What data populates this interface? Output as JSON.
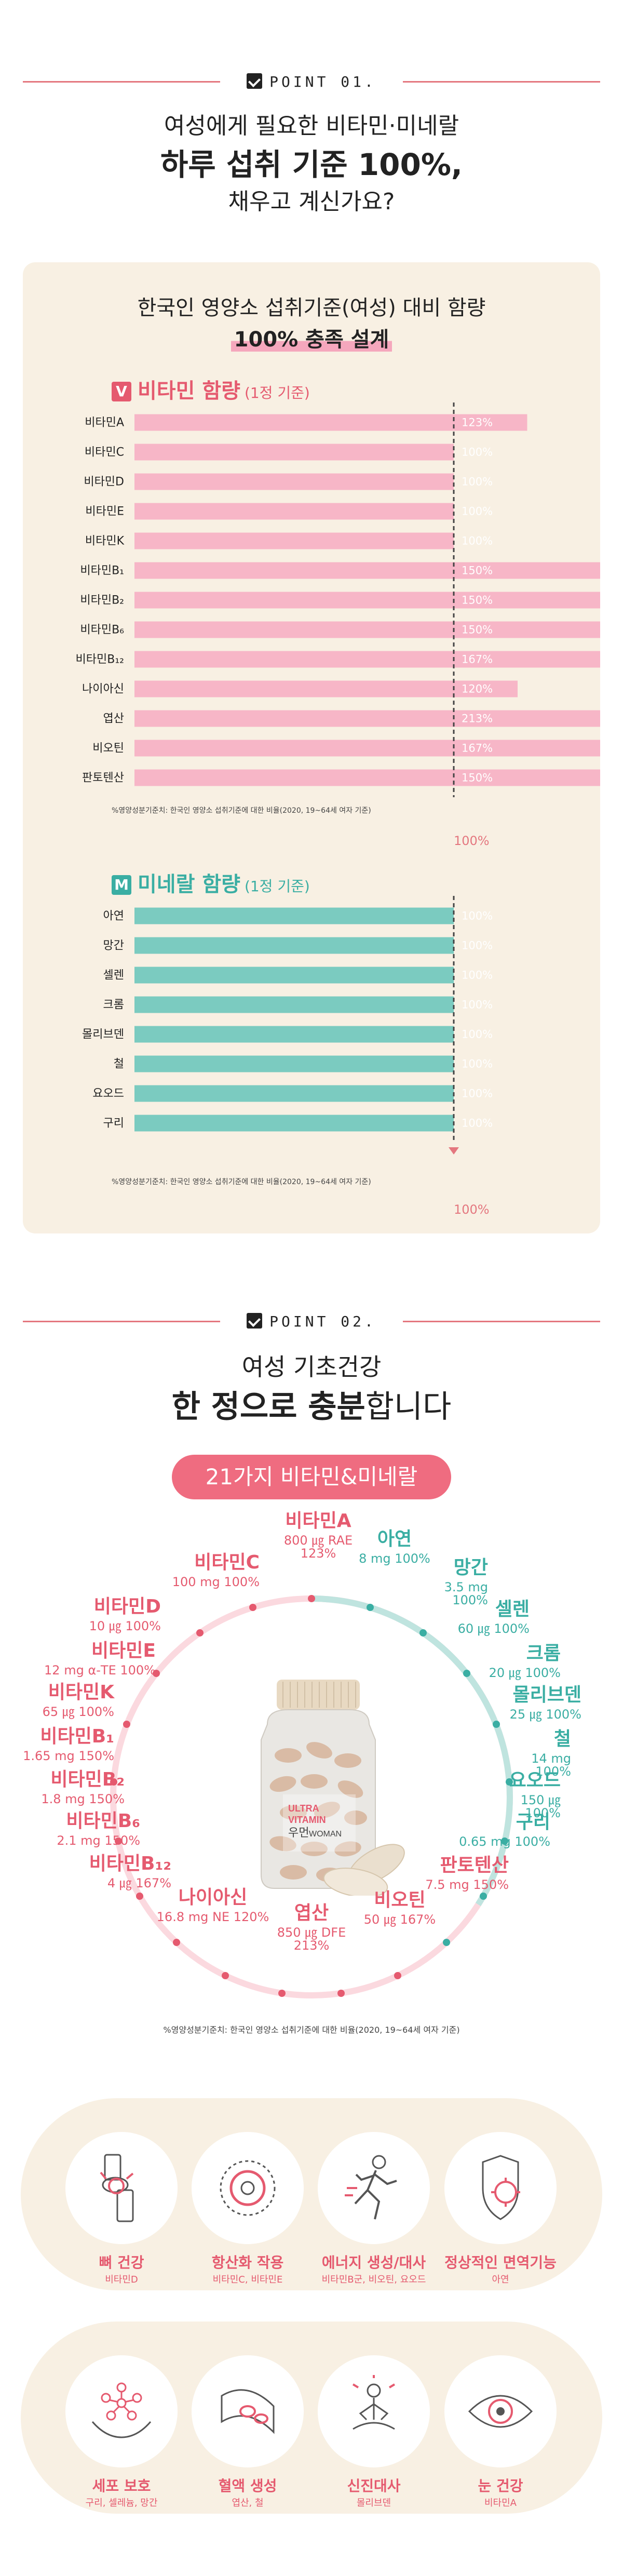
{
  "point1": {
    "label": "POINT 01.",
    "line1": "여성에게 필요한 비타민·미네랄",
    "line2": "하루 섭취 기준 100%,",
    "line3": "채우고 계신가요?"
  },
  "card": {
    "title1": "한국인 영양소 섭취기준(여성) 대비 함량",
    "title2": "100% 충족 설계",
    "vit_box": "V",
    "vit_label": "비타민 함량",
    "vit_sub": "(1정 기준)",
    "min_box": "M",
    "min_label": "미네랄 함량",
    "min_sub": "(1정 기준)",
    "note": "%영양성분기준치: 한국인 영양소 섭취기준에 대한 비율(2020, 19~64세 여자 기준)",
    "hundred": "100%"
  },
  "chart_data": [
    {
      "type": "bar",
      "title": "비타민 함량",
      "categories": [
        "비타민A",
        "비타민C",
        "비타민D",
        "비타민E",
        "비타민K",
        "비타민B₁",
        "비타민B₂",
        "비타민B₆",
        "비타민B₁₂",
        "나이아신",
        "엽산",
        "비오틴",
        "판토텐산"
      ],
      "values": [
        123,
        100,
        100,
        100,
        100,
        150,
        150,
        150,
        167,
        120,
        213,
        167,
        150
      ],
      "value_labels": [
        "123%",
        "100%",
        "100%",
        "100%",
        "100%",
        "150%",
        "150%",
        "150%",
        "167%",
        "120%",
        "213%",
        "167%",
        "150%"
      ],
      "reference_line": 100,
      "color": "#f7b6c7"
    },
    {
      "type": "bar",
      "title": "미네랄 함량",
      "categories": [
        "아연",
        "망간",
        "셀렌",
        "크롬",
        "몰리브덴",
        "철",
        "요오드",
        "구리"
      ],
      "values": [
        100,
        100,
        100,
        100,
        100,
        100,
        100,
        100
      ],
      "value_labels": [
        "100%",
        "100%",
        "100%",
        "100%",
        "100%",
        "100%",
        "100%",
        "100%"
      ],
      "reference_line": 100,
      "color": "#7bcbc0"
    }
  ],
  "point2": {
    "label": "POINT 02.",
    "line1": "여성 기초건강",
    "line2a": "한 정으로 충분",
    "line2b": "합니다",
    "pill": "21가지 비타민&미네랄",
    "note": "%영양성분기준치: 한국인 영양소 섭취기준에 대한 비율(2020, 19~64세 여자 기준)"
  },
  "bottle": {
    "brand1": "ULTRA",
    "brand2": "VITAMIN",
    "brand3": "우먼",
    "brand4": "WOMAN"
  },
  "nutrients": [
    {
      "name": "비타민A",
      "dose": "800 ㎍ RAE 123%",
      "color": "pink"
    },
    {
      "name": "아연",
      "dose": "8 mg 100%",
      "color": "teal"
    },
    {
      "name": "망간",
      "dose": "3.5 mg 100%",
      "color": "teal"
    },
    {
      "name": "셀렌",
      "dose": "60 ㎍ 100%",
      "color": "teal"
    },
    {
      "name": "크롬",
      "dose": "20 ㎍ 100%",
      "color": "teal"
    },
    {
      "name": "몰리브덴",
      "dose": "25 ㎍ 100%",
      "color": "teal"
    },
    {
      "name": "철",
      "dose": "14 mg 100%",
      "color": "teal"
    },
    {
      "name": "요오드",
      "dose": "150 ㎍ 100%",
      "color": "teal"
    },
    {
      "name": "구리",
      "dose": "0.65 mg 100%",
      "color": "teal"
    },
    {
      "name": "판토텐산",
      "dose": "7.5 mg 150%",
      "color": "pink"
    },
    {
      "name": "비오틴",
      "dose": "50 ㎍ 167%",
      "color": "pink"
    },
    {
      "name": "엽산",
      "dose": "850 ㎍ DFE 213%",
      "color": "pink"
    },
    {
      "name": "나이아신",
      "dose": "16.8 mg NE 120%",
      "color": "pink"
    },
    {
      "name": "비타민B₁₂",
      "dose": "4 ㎍ 167%",
      "color": "pink"
    },
    {
      "name": "비타민B₆",
      "dose": "2.1 mg 150%",
      "color": "pink"
    },
    {
      "name": "비타민B₂",
      "dose": "1.8 mg 150%",
      "color": "pink"
    },
    {
      "name": "비타민B₁",
      "dose": "1.65 mg 150%",
      "color": "pink"
    },
    {
      "name": "비타민K",
      "dose": "65 ㎍ 100%",
      "color": "pink"
    },
    {
      "name": "비타민E",
      "dose": "12 mg α-TE 100%",
      "color": "pink"
    },
    {
      "name": "비타민D",
      "dose": "10 ㎍ 100%",
      "color": "pink"
    },
    {
      "name": "비타민C",
      "dose": "100 mg 100%",
      "color": "pink"
    }
  ],
  "benefits": [
    {
      "title": "뼈 건강",
      "sub": "비타민D",
      "icon": "knee-joint-icon"
    },
    {
      "title": "항산화 작용",
      "sub": "비타민C, 비타민E",
      "icon": "antioxidant-icon"
    },
    {
      "title": "에너지 생성/대사",
      "sub": "비타민B군, 비오틴, 요오드",
      "icon": "running-person-icon"
    },
    {
      "title": "정상적인 면역기능",
      "sub": "아연",
      "icon": "immune-shield-icon"
    },
    {
      "title": "세포 보호",
      "sub": "구리, 셀레늄, 망간",
      "icon": "cell-protect-icon"
    },
    {
      "title": "혈액 생성",
      "sub": "엽산, 철",
      "icon": "blood-vessel-icon"
    },
    {
      "title": "신진대사",
      "sub": "몰리브덴",
      "icon": "meditation-icon"
    },
    {
      "title": "눈 건강",
      "sub": "비타민A",
      "icon": "eye-icon"
    }
  ],
  "colors": {
    "pink": "#e55a6f",
    "accent": "#e4777f",
    "teal": "#3aaea3",
    "beige": "#f8f0e3",
    "vit_bar": "#f7b6c7",
    "min_bar": "#7bcbc0"
  }
}
